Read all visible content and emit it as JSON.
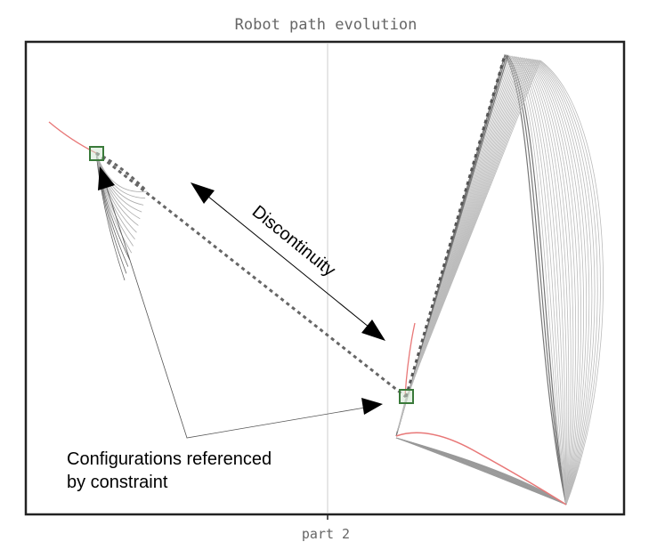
{
  "title": "Robot path evolution",
  "x_axis_label": "part 2",
  "annotations": {
    "discontinuity": "Discontinuity",
    "constraint": [
      "Configurations referenced",
      "by constraint"
    ]
  }
}
